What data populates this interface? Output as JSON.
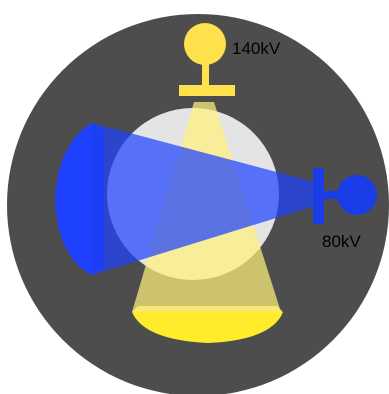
{
  "tube_top": {
    "label": "140kV",
    "color": "#ffe14d"
  },
  "tube_right": {
    "label": "80kV",
    "color": "#1a3de8"
  },
  "colors": {
    "gantry": "#4d4d4d",
    "patient": "#e4e4e4",
    "beam_yellow": "#fff07a",
    "beam_blue": "#1f42ff"
  }
}
